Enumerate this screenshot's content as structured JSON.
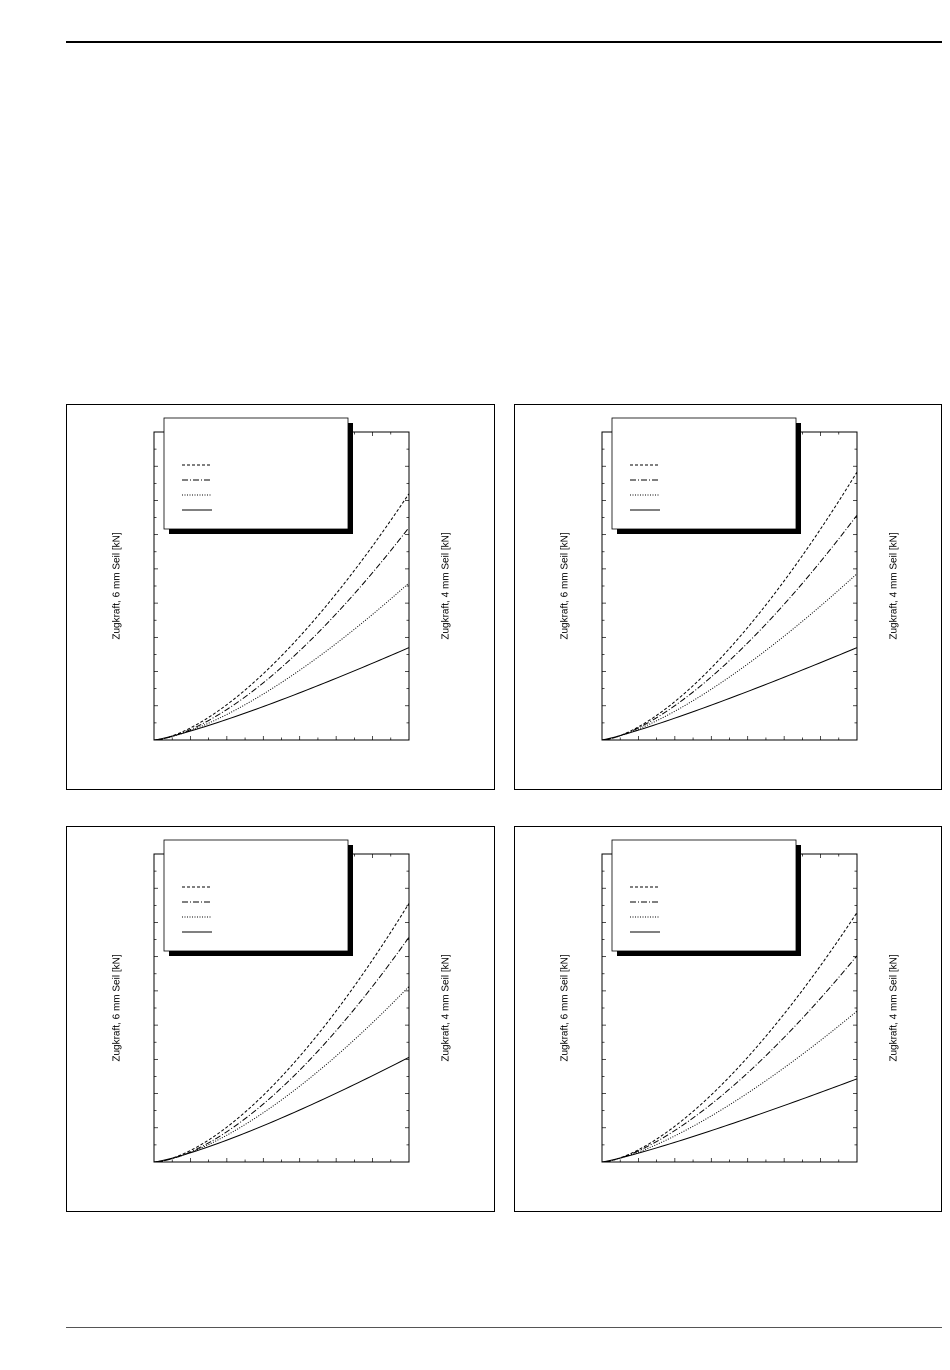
{
  "page": {
    "header_rule": true,
    "footer_rule": true
  },
  "colors": {
    "ink": "#000000",
    "background": "#ffffff",
    "legend_shadow": "#000000"
  },
  "chart_data": [
    {
      "type": "line",
      "title": "",
      "xlabel": "",
      "ylabel_left": "Zugkraft, 6 mm Seil [kN]",
      "ylabel_right": "Zugkraft, 4 mm Seil [kN]",
      "xlim": [
        0,
        1
      ],
      "ylim": [
        0,
        1
      ],
      "legend": {
        "placement": "top-left",
        "shadow": true,
        "entries": [
          "",
          "",
          "",
          ""
        ]
      },
      "series": [
        {
          "style": "dashed",
          "exponent": 1.55,
          "end_value": 0.8
        },
        {
          "style": "dash-dot",
          "exponent": 1.55,
          "end_value": 0.69
        },
        {
          "style": "dotted",
          "exponent": 1.45,
          "end_value": 0.51
        },
        {
          "style": "solid",
          "exponent": 1.2,
          "end_value": 0.3
        }
      ]
    },
    {
      "type": "line",
      "title": "",
      "xlabel": "",
      "ylabel_left": "Zugkraft, 6 mm Seil [kN]",
      "ylabel_right": "Zugkraft, 4 mm Seil [kN]",
      "xlim": [
        0,
        1
      ],
      "ylim": [
        0,
        1
      ],
      "legend": {
        "placement": "top-left",
        "shadow": true,
        "entries": [
          "",
          "",
          "",
          ""
        ]
      },
      "series": [
        {
          "style": "dashed",
          "exponent": 1.55,
          "end_value": 0.87
        },
        {
          "style": "dash-dot",
          "exponent": 1.5,
          "end_value": 0.73
        },
        {
          "style": "dotted",
          "exponent": 1.4,
          "end_value": 0.54
        },
        {
          "style": "solid",
          "exponent": 1.15,
          "end_value": 0.3
        }
      ]
    },
    {
      "type": "line",
      "title": "",
      "xlabel": "",
      "ylabel_left": "Zugkraft, 6 mm Seil [kN]",
      "ylabel_right": "Zugkraft, 4 mm Seil [kN]",
      "xlim": [
        0,
        1
      ],
      "ylim": [
        0,
        1
      ],
      "legend": {
        "placement": "top-left",
        "shadow": true,
        "entries": [
          "",
          "",
          "",
          ""
        ]
      },
      "series": [
        {
          "style": "dashed",
          "exponent": 1.6,
          "end_value": 0.84
        },
        {
          "style": "dash-dot",
          "exponent": 1.6,
          "end_value": 0.73
        },
        {
          "style": "dotted",
          "exponent": 1.5,
          "end_value": 0.57
        },
        {
          "style": "solid",
          "exponent": 1.25,
          "end_value": 0.34
        }
      ]
    },
    {
      "type": "line",
      "title": "",
      "xlabel": "",
      "ylabel_left": "Zugkraft, 6 mm Seil [kN]",
      "ylabel_right": "Zugkraft, 4 mm Seil [kN]",
      "xlim": [
        0,
        1
      ],
      "ylim": [
        0,
        1
      ],
      "legend": {
        "placement": "top-left",
        "shadow": true,
        "entries": [
          "",
          "",
          "",
          ""
        ]
      },
      "series": [
        {
          "style": "dashed",
          "exponent": 1.55,
          "end_value": 0.81
        },
        {
          "style": "dash-dot",
          "exponent": 1.5,
          "end_value": 0.67
        },
        {
          "style": "dotted",
          "exponent": 1.4,
          "end_value": 0.49
        },
        {
          "style": "solid",
          "exponent": 1.15,
          "end_value": 0.27
        }
      ]
    }
  ]
}
